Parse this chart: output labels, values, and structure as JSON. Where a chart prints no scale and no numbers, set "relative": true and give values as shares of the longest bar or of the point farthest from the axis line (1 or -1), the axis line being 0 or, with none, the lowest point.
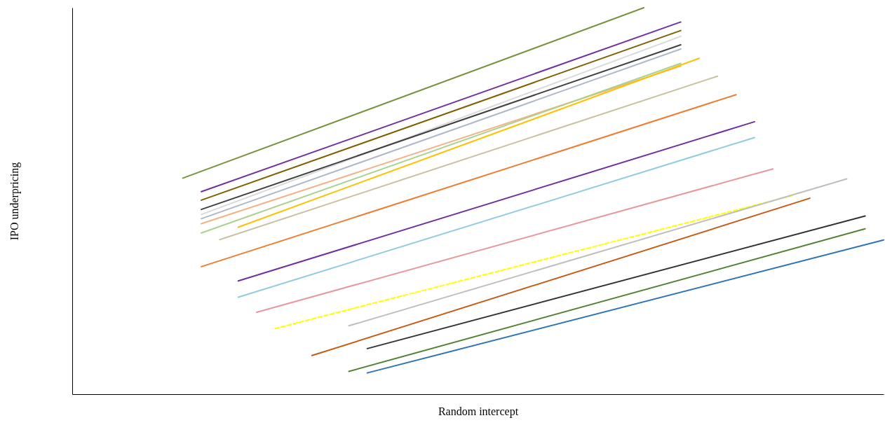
{
  "chart_data": {
    "type": "line",
    "relative": true,
    "xlabel": "Random intercept",
    "ylabel": "IPO underpricing",
    "grid": false,
    "marker": "none",
    "categories": [
      null,
      null,
      null,
      null,
      null,
      null,
      null,
      null,
      null,
      null,
      null,
      null,
      null,
      null,
      null,
      null,
      null,
      null,
      null,
      null,
      null,
      null,
      null,
      null,
      null,
      null,
      null,
      null,
      null,
      null,
      null,
      null,
      null,
      null,
      null,
      null,
      null,
      null,
      null,
      null,
      null,
      null,
      null,
      null,
      null
    ],
    "series": [
      {
        "color": "#77933c",
        "values": [
          null,
          null,
          null,
          null,
          null,
          null,
          0.559,
          null,
          null,
          null,
          null,
          null,
          null,
          null,
          null,
          null,
          null,
          null,
          null,
          null,
          null,
          null,
          null,
          null,
          null,
          null,
          null,
          null,
          null,
          null,
          null,
          1.0,
          null,
          null,
          null,
          null,
          null,
          null,
          null,
          null,
          null,
          null,
          null,
          null,
          null
        ]
      },
      {
        "color": "#7030a0",
        "values": [
          null,
          null,
          null,
          null,
          null,
          null,
          null,
          0.524,
          null,
          null,
          null,
          null,
          null,
          null,
          null,
          null,
          null,
          null,
          null,
          null,
          null,
          null,
          null,
          null,
          null,
          null,
          null,
          null,
          null,
          null,
          null,
          null,
          null,
          0.963,
          null,
          null,
          null,
          null,
          null,
          null,
          null,
          null,
          null,
          null,
          null
        ]
      },
      {
        "color": "#7f6000",
        "values": [
          null,
          null,
          null,
          null,
          null,
          null,
          null,
          0.502,
          null,
          null,
          null,
          null,
          null,
          null,
          null,
          null,
          null,
          null,
          null,
          null,
          null,
          null,
          null,
          null,
          null,
          null,
          null,
          null,
          null,
          null,
          null,
          null,
          null,
          0.941,
          null,
          null,
          null,
          null,
          null,
          null,
          null,
          null,
          null,
          null,
          null
        ]
      },
      {
        "color": "#d9d9d9",
        "values": [
          null,
          null,
          null,
          null,
          null,
          null,
          null,
          0.465,
          null,
          null,
          null,
          null,
          null,
          null,
          null,
          null,
          null,
          null,
          null,
          null,
          null,
          null,
          null,
          null,
          null,
          null,
          null,
          null,
          null,
          null,
          null,
          null,
          null,
          0.926,
          null,
          null,
          null,
          null,
          null,
          null,
          null,
          null,
          null,
          null,
          null
        ]
      },
      {
        "color": "#404040",
        "values": [
          null,
          null,
          null,
          null,
          null,
          null,
          null,
          0.478,
          null,
          null,
          null,
          null,
          null,
          null,
          null,
          null,
          null,
          null,
          null,
          null,
          null,
          null,
          null,
          null,
          null,
          null,
          null,
          null,
          null,
          null,
          null,
          null,
          null,
          0.904,
          null,
          null,
          null,
          null,
          null,
          null,
          null,
          null,
          null,
          null,
          null
        ]
      },
      {
        "color": "#adb9ca",
        "values": [
          null,
          null,
          null,
          null,
          null,
          null,
          null,
          0.454,
          null,
          null,
          null,
          null,
          null,
          null,
          null,
          null,
          null,
          null,
          null,
          null,
          null,
          null,
          null,
          null,
          null,
          null,
          null,
          null,
          null,
          null,
          null,
          null,
          null,
          0.893,
          null,
          null,
          null,
          null,
          null,
          null,
          null,
          null,
          null,
          null,
          null
        ]
      },
      {
        "color": "#f4b183",
        "values": [
          null,
          null,
          null,
          null,
          null,
          null,
          null,
          0.441,
          null,
          null,
          null,
          null,
          null,
          null,
          null,
          null,
          null,
          null,
          null,
          null,
          null,
          null,
          null,
          null,
          null,
          null,
          null,
          null,
          null,
          null,
          null,
          null,
          null,
          0.849,
          null,
          null,
          null,
          null,
          null,
          null,
          null,
          null,
          null,
          null,
          null
        ]
      },
      {
        "color": "#a9d18e",
        "values": [
          null,
          null,
          null,
          null,
          null,
          null,
          null,
          0.417,
          null,
          null,
          null,
          null,
          null,
          null,
          null,
          null,
          null,
          null,
          null,
          null,
          null,
          null,
          null,
          null,
          null,
          null,
          null,
          null,
          null,
          null,
          null,
          null,
          null,
          0.856,
          null,
          null,
          null,
          null,
          null,
          null,
          null,
          null,
          null,
          null,
          null
        ]
      },
      {
        "color": "#ffc000",
        "values": [
          null,
          null,
          null,
          null,
          null,
          null,
          null,
          null,
          null,
          0.432,
          null,
          null,
          null,
          null,
          null,
          null,
          null,
          null,
          null,
          null,
          null,
          null,
          null,
          null,
          null,
          null,
          null,
          null,
          null,
          null,
          null,
          null,
          null,
          null,
          0.869,
          null,
          null,
          null,
          null,
          null,
          null,
          null,
          null,
          null,
          null
        ]
      },
      {
        "color": "#c9c1a1",
        "values": [
          null,
          null,
          null,
          null,
          null,
          null,
          null,
          null,
          0.4,
          null,
          null,
          null,
          null,
          null,
          null,
          null,
          null,
          null,
          null,
          null,
          null,
          null,
          null,
          null,
          null,
          null,
          null,
          null,
          null,
          null,
          null,
          null,
          null,
          null,
          null,
          0.823,
          null,
          null,
          null,
          null,
          null,
          null,
          null,
          null,
          null
        ]
      },
      {
        "color": "#ed7d31",
        "values": [
          null,
          null,
          null,
          null,
          null,
          null,
          null,
          0.33,
          null,
          null,
          null,
          null,
          null,
          null,
          null,
          null,
          null,
          null,
          null,
          null,
          null,
          null,
          null,
          null,
          null,
          null,
          null,
          null,
          null,
          null,
          null,
          null,
          null,
          null,
          null,
          null,
          0.775,
          null,
          null,
          null,
          null,
          null,
          null,
          null,
          null
        ]
      },
      {
        "color": "#7030a0",
        "values": [
          null,
          null,
          null,
          null,
          null,
          null,
          null,
          null,
          null,
          0.293,
          null,
          null,
          null,
          null,
          null,
          null,
          null,
          null,
          null,
          null,
          null,
          null,
          null,
          null,
          null,
          null,
          null,
          null,
          null,
          null,
          null,
          null,
          null,
          null,
          null,
          null,
          null,
          0.705,
          null,
          null,
          null,
          null,
          null,
          null,
          null
        ]
      },
      {
        "color": "#8fcce0",
        "values": [
          null,
          null,
          null,
          null,
          null,
          null,
          null,
          null,
          null,
          0.251,
          null,
          null,
          null,
          null,
          null,
          null,
          null,
          null,
          null,
          null,
          null,
          null,
          null,
          null,
          null,
          null,
          null,
          null,
          null,
          null,
          null,
          null,
          null,
          null,
          null,
          null,
          null,
          0.664,
          null,
          null,
          null,
          null,
          null,
          null,
          null
        ]
      },
      {
        "color": "#e6989a",
        "values": [
          null,
          null,
          null,
          null,
          null,
          null,
          null,
          null,
          null,
          null,
          0.212,
          null,
          null,
          null,
          null,
          null,
          null,
          null,
          null,
          null,
          null,
          null,
          null,
          null,
          null,
          null,
          null,
          null,
          null,
          null,
          null,
          null,
          null,
          null,
          null,
          null,
          null,
          null,
          0.583,
          null,
          null,
          null,
          null,
          null,
          null
        ]
      },
      {
        "color": "#ffff00",
        "line_style": "dashed",
        "values": [
          null,
          null,
          null,
          null,
          null,
          null,
          null,
          null,
          null,
          null,
          null,
          0.17,
          null,
          null,
          null,
          null,
          null,
          null,
          null,
          null,
          null,
          null,
          null,
          null,
          null,
          null,
          null,
          null,
          null,
          null,
          null,
          null,
          null,
          null,
          null,
          null,
          null,
          null,
          null,
          0.513,
          null,
          null,
          null,
          null,
          null
        ]
      },
      {
        "color": "#bfbfbf",
        "values": [
          null,
          null,
          null,
          null,
          null,
          null,
          null,
          null,
          null,
          null,
          null,
          null,
          null,
          null,
          null,
          0.177,
          null,
          null,
          null,
          null,
          null,
          null,
          null,
          null,
          null,
          null,
          null,
          null,
          null,
          null,
          null,
          null,
          null,
          null,
          null,
          null,
          null,
          null,
          null,
          null,
          null,
          null,
          0.557,
          null,
          null
        ]
      },
      {
        "color": "#c55a11",
        "values": [
          null,
          null,
          null,
          null,
          null,
          null,
          null,
          null,
          null,
          null,
          null,
          null,
          null,
          0.1,
          null,
          null,
          null,
          null,
          null,
          null,
          null,
          null,
          null,
          null,
          null,
          null,
          null,
          null,
          null,
          null,
          null,
          null,
          null,
          null,
          null,
          null,
          null,
          null,
          null,
          null,
          0.507,
          null,
          null,
          null,
          null
        ]
      },
      {
        "color": "#333333",
        "values": [
          null,
          null,
          null,
          null,
          null,
          null,
          null,
          null,
          null,
          null,
          null,
          null,
          null,
          null,
          null,
          null,
          0.118,
          null,
          null,
          null,
          null,
          null,
          null,
          null,
          null,
          null,
          null,
          null,
          null,
          null,
          null,
          null,
          null,
          null,
          null,
          null,
          null,
          null,
          null,
          null,
          null,
          null,
          null,
          0.461,
          null
        ]
      },
      {
        "color": "#548235",
        "values": [
          null,
          null,
          null,
          null,
          null,
          null,
          null,
          null,
          null,
          null,
          null,
          null,
          null,
          null,
          null,
          0.059,
          null,
          null,
          null,
          null,
          null,
          null,
          null,
          null,
          null,
          null,
          null,
          null,
          null,
          null,
          null,
          null,
          null,
          null,
          null,
          null,
          null,
          null,
          null,
          null,
          null,
          null,
          null,
          0.428,
          null
        ]
      },
      {
        "color": "#2e75b6",
        "values": [
          null,
          null,
          null,
          null,
          null,
          null,
          null,
          null,
          null,
          null,
          null,
          null,
          null,
          null,
          null,
          null,
          0.055,
          null,
          null,
          null,
          null,
          null,
          null,
          null,
          null,
          null,
          null,
          null,
          null,
          null,
          null,
          null,
          null,
          null,
          null,
          null,
          null,
          null,
          null,
          null,
          null,
          null,
          null,
          null,
          0.399
        ]
      }
    ]
  }
}
